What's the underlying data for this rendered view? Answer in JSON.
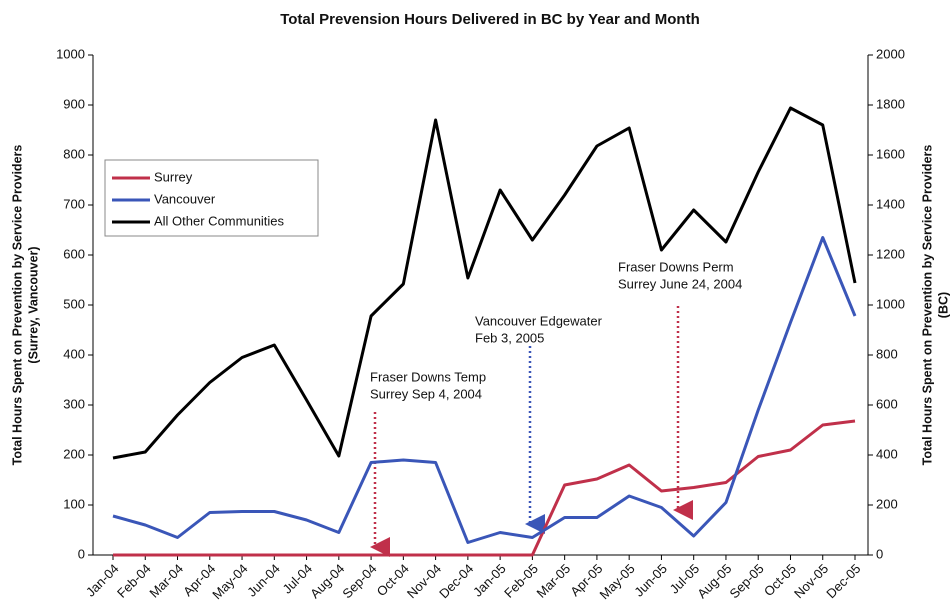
{
  "chart_data": {
    "type": "line",
    "title": "Total Prevension Hours Delivered in BC by Year and Month",
    "ylabel": [
      "Total Hours Spent on Prevention by Service Providers",
      "(Surrey, Vancouver)"
    ],
    "y2label": [
      "Total Hours Spent on Prevention by Service Providers",
      "(BC)"
    ],
    "categories": [
      "Jan-04",
      "Feb-04",
      "Mar-04",
      "Apr-04",
      "May-04",
      "Jun-04",
      "Jul-04",
      "Aug-04",
      "Sep-04",
      "Oct-04",
      "Nov-04",
      "Dec-04",
      "Jan-05",
      "Feb-05",
      "Mar-05",
      "Apr-05",
      "May-05",
      "Jun-05",
      "Jul-05",
      "Aug-05",
      "Sep-05",
      "Oct-05",
      "Nov-05",
      "Dec-05"
    ],
    "series": [
      {
        "name": "Surrey",
        "color": "#c0304a",
        "values": [
          0,
          0,
          0,
          0,
          0,
          0,
          0,
          0,
          0,
          0,
          0,
          0,
          0,
          0,
          140,
          152,
          180,
          128,
          135,
          145,
          197,
          210,
          260,
          268
        ]
      },
      {
        "name": "Vancouver",
        "color": "#3a56b8",
        "values": [
          78,
          60,
          35,
          85,
          87,
          87,
          70,
          45,
          185,
          190,
          185,
          25,
          45,
          35,
          75,
          75,
          118,
          95,
          38,
          105,
          290,
          465,
          635,
          478
        ]
      },
      {
        "name": "All Other Communities",
        "color": "#000000",
        "axis": "y2",
        "values": [
          388,
          412,
          560,
          690,
          790,
          840,
          620,
          396,
          956,
          1084,
          1740,
          1108,
          1460,
          1260,
          1440,
          1636,
          1708,
          1220,
          1380,
          1252,
          1532,
          1788,
          1720,
          1088
        ]
      }
    ],
    "ylim": [
      0,
      1000
    ],
    "yticks": [
      0,
      100,
      200,
      300,
      400,
      500,
      600,
      700,
      800,
      900,
      1000
    ],
    "y2lim": [
      0,
      2000
    ],
    "y2ticks": [
      0,
      200,
      400,
      600,
      800,
      1000,
      1200,
      1400,
      1600,
      1800,
      2000
    ],
    "legend": "upper left",
    "annotations": [
      {
        "lines": [
          "Fraser Downs Temp",
          "Surrey Sep 4, 2004"
        ],
        "color": "#c0304a"
      },
      {
        "lines": [
          "Vancouver Edgewater",
          "Feb 3, 2005"
        ],
        "color": "#3a56b8"
      },
      {
        "lines": [
          "Fraser Downs Perm",
          "Surrey June 24, 2004"
        ],
        "color": "#c0304a"
      }
    ]
  }
}
